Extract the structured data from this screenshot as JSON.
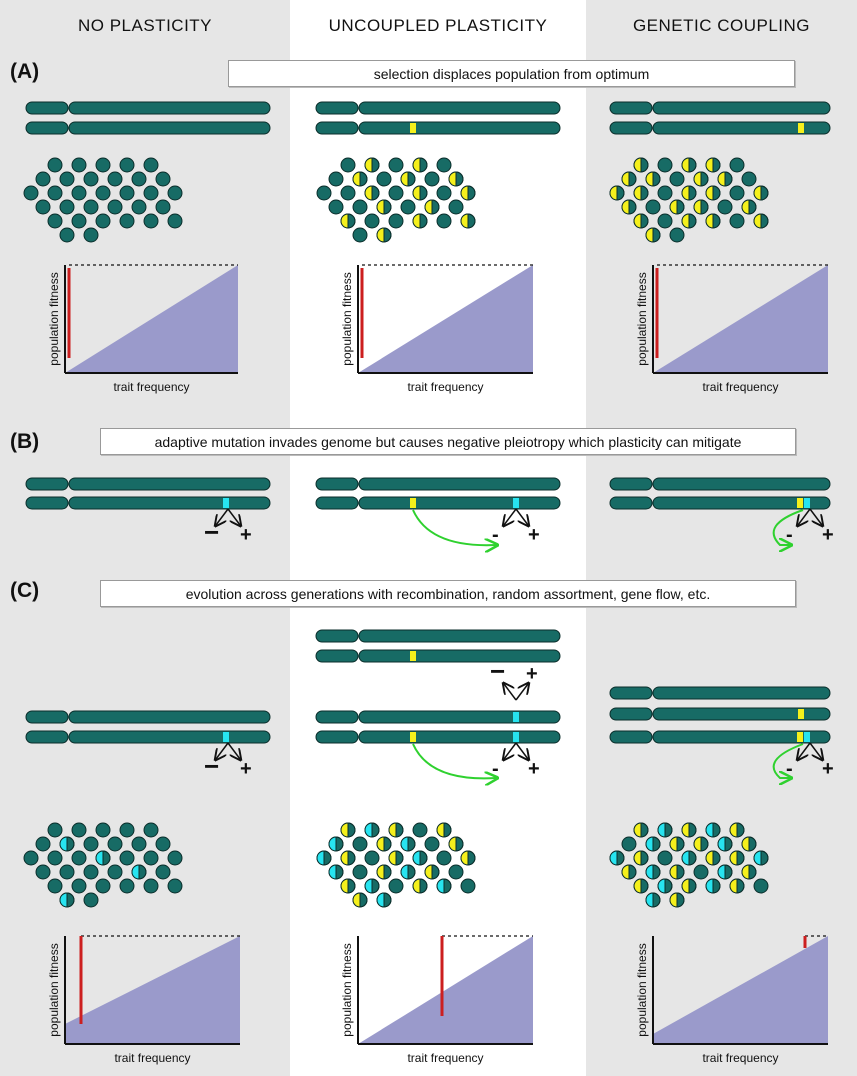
{
  "columns": [
    {
      "title": "NO  PLASTICITY",
      "bg": "#e6e6e6"
    },
    {
      "title": "UNCOUPLED  PLASTICITY",
      "bg": "#ffffff"
    },
    {
      "title": "GENETIC COUPLING",
      "bg": "#e6e6e6"
    }
  ],
  "panels": [
    {
      "label": "(A)",
      "banner": "selection displaces population from optimum"
    },
    {
      "label": "(B)",
      "banner": "adaptive mutation invades genome but causes negative pleiotropy which plasticity can mitigate"
    },
    {
      "label": "(C)",
      "banner": "evolution across generations with recombination, random assortment, gene flow, etc."
    }
  ],
  "plot_labels": {
    "y": "population fitness",
    "x": "trait frequency"
  },
  "pleiotropy": {
    "minus": "−",
    "plus": "+",
    "minus_small": "-"
  },
  "colors": {
    "chromosome": "#176b65",
    "chromosome_edge": "#0b2e2b",
    "plasticity_allele": "#f5f01c",
    "adaptive_allele": "#27e4f0",
    "fitness_area": "#9a9acb",
    "fitness_gap": "#cc1f1f",
    "coupling_arrow": "#2fd12f"
  },
  "icons": [
    "chromosome-pair-icon",
    "cell-icon",
    "curved-arrow-icon",
    "branch-arrow-icon"
  ]
}
